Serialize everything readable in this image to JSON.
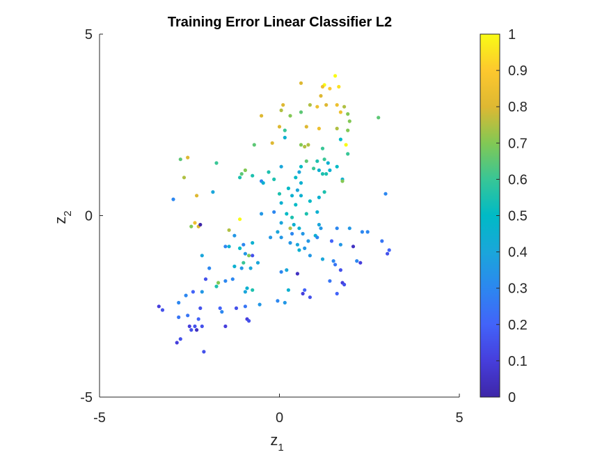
{
  "chart_data": {
    "type": "scatter",
    "title": "Training Error Linear Classifier L2",
    "xlabel": {
      "base": "z",
      "sub": "1"
    },
    "ylabel": {
      "base": "z",
      "sub": "2"
    },
    "xlim": [
      -5,
      5
    ],
    "ylim": [
      -5,
      5
    ],
    "xticks": [
      -5,
      0,
      5
    ],
    "yticks": [
      -5,
      0,
      5
    ],
    "grid": false,
    "colorbar": {
      "colormap": "parula",
      "range": [
        0,
        1
      ],
      "ticks": [
        0,
        0.1,
        0.2,
        0.3,
        0.4,
        0.5,
        0.6,
        0.7,
        0.8,
        0.9,
        1
      ],
      "tick_labels": [
        "0",
        "0.1",
        "0.2",
        "0.3",
        "0.4",
        "0.5",
        "0.6",
        "0.7",
        "0.8",
        "0.9",
        "1"
      ]
    },
    "points": [
      [
        1.55,
        3.85,
        1.0
      ],
      [
        0.6,
        3.65,
        0.8
      ],
      [
        1.25,
        3.6,
        1.0
      ],
      [
        1.65,
        3.55,
        0.95
      ],
      [
        1.2,
        3.55,
        0.85
      ],
      [
        1.4,
        3.5,
        0.9
      ],
      [
        1.6,
        3.05,
        0.85
      ],
      [
        1.15,
        3.3,
        0.8
      ],
      [
        0.85,
        3.05,
        0.75
      ],
      [
        1.3,
        3.05,
        0.8
      ],
      [
        1.05,
        3.0,
        0.85
      ],
      [
        0.1,
        3.05,
        0.8
      ],
      [
        0.05,
        2.9,
        0.75
      ],
      [
        0.6,
        2.85,
        0.65
      ],
      [
        1.8,
        3.0,
        0.75
      ],
      [
        -0.5,
        2.75,
        0.8
      ],
      [
        0.3,
        2.75,
        0.7
      ],
      [
        1.9,
        2.8,
        0.7
      ],
      [
        1.7,
        2.85,
        0.85
      ],
      [
        2.75,
        2.7,
        0.65
      ],
      [
        0.0,
        2.45,
        0.8
      ],
      [
        0.15,
        2.35,
        0.6
      ],
      [
        0.75,
        2.45,
        0.8
      ],
      [
        1.1,
        2.4,
        0.85
      ],
      [
        1.6,
        2.4,
        0.75
      ],
      [
        1.95,
        2.6,
        0.7
      ],
      [
        1.9,
        2.35,
        0.7
      ],
      [
        0.15,
        2.15,
        0.45
      ],
      [
        -0.2,
        2.0,
        0.8
      ],
      [
        -0.7,
        1.95,
        0.65
      ],
      [
        0.6,
        1.95,
        0.7
      ],
      [
        0.7,
        1.9,
        0.75
      ],
      [
        0.8,
        1.95,
        0.75
      ],
      [
        1.7,
        2.1,
        0.5
      ],
      [
        1.85,
        1.95,
        1.0
      ],
      [
        1.2,
        1.85,
        0.6
      ],
      [
        1.9,
        1.7,
        0.6
      ],
      [
        -2.55,
        1.6,
        0.8
      ],
      [
        -2.75,
        1.55,
        0.65
      ],
      [
        -1.75,
        1.45,
        0.6
      ],
      [
        0.75,
        1.5,
        0.65
      ],
      [
        1.05,
        1.5,
        0.55
      ],
      [
        1.25,
        1.55,
        0.6
      ],
      [
        0.6,
        1.35,
        0.5
      ],
      [
        0.95,
        1.3,
        0.6
      ],
      [
        1.1,
        1.25,
        0.45
      ],
      [
        1.4,
        1.25,
        0.45
      ],
      [
        0.05,
        1.35,
        0.4
      ],
      [
        -0.95,
        1.25,
        0.7
      ],
      [
        -1.05,
        1.15,
        0.65
      ],
      [
        -0.75,
        1.1,
        0.55
      ],
      [
        -1.1,
        1.05,
        0.55
      ],
      [
        1.35,
        1.45,
        0.45
      ],
      [
        1.6,
        1.35,
        0.5
      ],
      [
        0.55,
        1.2,
        0.4
      ],
      [
        0.45,
        1.05,
        0.5
      ],
      [
        -0.3,
        1.2,
        0.55
      ],
      [
        -2.65,
        1.05,
        0.75
      ],
      [
        -0.15,
        1.0,
        0.55
      ],
      [
        1.2,
        1.15,
        0.55
      ],
      [
        1.3,
        1.15,
        0.55
      ],
      [
        1.75,
        1.0,
        0.45
      ],
      [
        1.75,
        0.95,
        0.7
      ],
      [
        -0.5,
        0.95,
        0.3
      ],
      [
        -0.45,
        0.9,
        0.45
      ],
      [
        0.6,
        0.9,
        0.45
      ],
      [
        0.25,
        0.75,
        0.5
      ],
      [
        0.5,
        0.7,
        0.4
      ],
      [
        -1.85,
        0.65,
        0.4
      ],
      [
        -2.3,
        0.55,
        0.8
      ],
      [
        0.0,
        0.6,
        0.55
      ],
      [
        0.35,
        0.55,
        0.45
      ],
      [
        0.6,
        0.55,
        0.45
      ],
      [
        1.25,
        0.65,
        0.55
      ],
      [
        0.05,
        0.35,
        0.45
      ],
      [
        0.45,
        0.3,
        0.5
      ],
      [
        0.85,
        0.4,
        0.5
      ],
      [
        1.1,
        0.5,
        0.45
      ],
      [
        -2.95,
        0.45,
        0.3
      ],
      [
        2.95,
        0.6,
        0.3
      ],
      [
        -0.15,
        0.1,
        0.3
      ],
      [
        0.2,
        0.05,
        0.5
      ],
      [
        0.35,
        -0.05,
        0.55
      ],
      [
        0.75,
        0.05,
        0.55
      ],
      [
        1.05,
        0.1,
        0.45
      ],
      [
        -0.5,
        0.05,
        0.35
      ],
      [
        -1.1,
        -0.1,
        1.0
      ],
      [
        0.05,
        -0.2,
        0.4
      ],
      [
        0.3,
        -0.35,
        0.75
      ],
      [
        0.55,
        -0.35,
        0.45
      ],
      [
        -2.45,
        -0.3,
        0.7
      ],
      [
        -2.35,
        -0.2,
        0.85
      ],
      [
        -2.25,
        -0.3,
        0.8
      ],
      [
        -2.2,
        -0.25,
        0.0
      ],
      [
        -1.4,
        -0.4,
        0.75
      ],
      [
        -1.25,
        -0.55,
        0.35
      ],
      [
        -0.05,
        -0.45,
        0.4
      ],
      [
        0.35,
        -0.5,
        0.3
      ],
      [
        0.65,
        -0.5,
        0.35
      ],
      [
        1.0,
        -0.55,
        0.45
      ],
      [
        1.1,
        -0.25,
        0.4
      ],
      [
        1.15,
        -0.35,
        0.35
      ],
      [
        1.6,
        -0.35,
        0.3
      ],
      [
        1.95,
        -0.35,
        0.35
      ],
      [
        2.45,
        -0.45,
        0.3
      ],
      [
        2.3,
        -0.45,
        0.3
      ],
      [
        2.85,
        -0.7,
        0.25
      ],
      [
        3.05,
        -0.95,
        0.2
      ],
      [
        3.0,
        -1.05,
        0.15
      ],
      [
        -1.0,
        -0.8,
        0.3
      ],
      [
        -0.75,
        -0.75,
        0.45
      ],
      [
        -0.25,
        -0.6,
        0.35
      ],
      [
        0.05,
        -0.6,
        0.35
      ],
      [
        0.3,
        -0.75,
        0.35
      ],
      [
        0.5,
        -0.8,
        0.4
      ],
      [
        0.7,
        -0.9,
        0.35
      ],
      [
        0.8,
        -0.7,
        0.35
      ],
      [
        1.05,
        -0.6,
        0.3
      ],
      [
        1.45,
        -0.7,
        0.2
      ],
      [
        1.7,
        -0.8,
        0.35
      ],
      [
        2.05,
        -0.85,
        0.05
      ],
      [
        -1.4,
        -0.85,
        0.45
      ],
      [
        -1.1,
        -0.9,
        0.5
      ],
      [
        -0.95,
        -1.05,
        0.35
      ],
      [
        -0.85,
        -1.1,
        0.7
      ],
      [
        -0.75,
        -1.1,
        0.15
      ],
      [
        0.55,
        -0.95,
        0.45
      ],
      [
        0.85,
        -1.1,
        0.35
      ],
      [
        2.15,
        -1.25,
        0.3
      ],
      [
        -2.15,
        -1.1,
        0.4
      ],
      [
        -1.0,
        -1.3,
        0.6
      ],
      [
        -0.6,
        -1.3,
        0.4
      ],
      [
        1.2,
        -1.2,
        0.4
      ],
      [
        1.5,
        -1.25,
        0.3
      ],
      [
        1.55,
        -1.35,
        0.25
      ],
      [
        2.25,
        -1.3,
        0.1
      ],
      [
        -1.25,
        -1.4,
        0.45
      ],
      [
        -1.05,
        -1.45,
        0.35
      ],
      [
        -0.8,
        -1.45,
        0.4
      ],
      [
        -1.95,
        -1.45,
        0.3
      ],
      [
        0.2,
        -1.5,
        0.4
      ],
      [
        0.5,
        -1.6,
        0.05
      ],
      [
        0.05,
        -1.55,
        0.3
      ],
      [
        1.7,
        -1.5,
        0.15
      ],
      [
        -2.05,
        -1.75,
        0.15
      ],
      [
        -1.7,
        -1.85,
        0.7
      ],
      [
        -1.5,
        -1.8,
        0.3
      ],
      [
        -1.75,
        -1.95,
        0.55
      ],
      [
        -1.3,
        -1.75,
        0.3
      ],
      [
        -0.9,
        -2.0,
        0.45
      ],
      [
        -0.75,
        -2.05,
        0.55
      ],
      [
        -0.95,
        -2.1,
        0.4
      ],
      [
        0.25,
        -2.05,
        0.45
      ],
      [
        1.4,
        -1.8,
        0.25
      ],
      [
        1.75,
        -1.85,
        0.1
      ],
      [
        1.8,
        -1.9,
        0.15
      ],
      [
        0.7,
        -2.05,
        0.2
      ],
      [
        0.65,
        -2.15,
        0.1
      ],
      [
        1.6,
        -2.15,
        0.2
      ],
      [
        0.85,
        -2.25,
        0.15
      ],
      [
        -2.15,
        -2.1,
        0.35
      ],
      [
        -2.4,
        -2.1,
        0.2
      ],
      [
        -2.6,
        -2.2,
        0.3
      ],
      [
        -2.8,
        -2.4,
        0.3
      ],
      [
        -0.05,
        -2.35,
        0.3
      ],
      [
        0.15,
        -2.4,
        0.35
      ],
      [
        -0.55,
        -2.45,
        0.35
      ],
      [
        -0.95,
        -2.5,
        0.25
      ],
      [
        -1.2,
        -2.55,
        0.15
      ],
      [
        -3.35,
        -2.5,
        0.1
      ],
      [
        -3.25,
        -2.6,
        0.15
      ],
      [
        -2.2,
        -2.55,
        0.15
      ],
      [
        -1.65,
        -2.55,
        0.2
      ],
      [
        -0.9,
        -2.85,
        0.1
      ],
      [
        -0.85,
        -2.9,
        0.15
      ],
      [
        -1.6,
        -2.65,
        0.3
      ],
      [
        -2.8,
        -2.8,
        0.25
      ],
      [
        -2.55,
        -2.75,
        0.25
      ],
      [
        -2.25,
        -2.85,
        0.2
      ],
      [
        -1.5,
        -3.05,
        0.1
      ],
      [
        -2.5,
        -3.05,
        0.1
      ],
      [
        -2.35,
        -3.05,
        0.15
      ],
      [
        -2.3,
        -3.15,
        0.05
      ],
      [
        -2.15,
        -3.05,
        0.15
      ],
      [
        -2.45,
        -3.15,
        0.15
      ],
      [
        -2.75,
        -3.4,
        0.15
      ],
      [
        -2.85,
        -3.5,
        0.1
      ],
      [
        -2.1,
        -3.75,
        0.15
      ],
      [
        -1.5,
        -0.85,
        0.3
      ],
      [
        0.4,
        -0.25,
        0.45
      ]
    ]
  }
}
